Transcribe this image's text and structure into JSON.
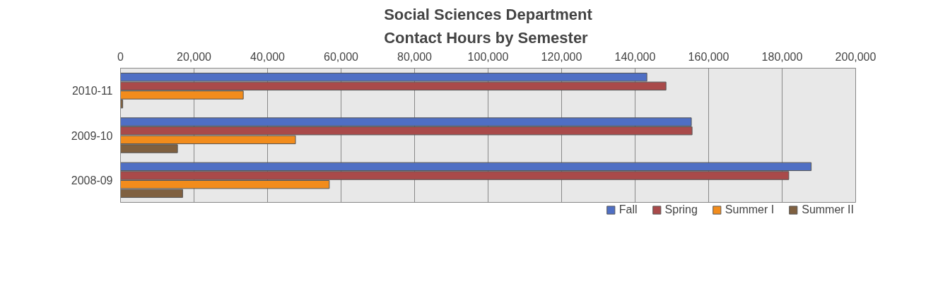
{
  "chart_data": {
    "type": "bar",
    "orientation": "horizontal",
    "title": "Social Sciences Department\nContact Hours by Semester",
    "categories": [
      "2010-11",
      "2009-10",
      "2008-09"
    ],
    "series": [
      {
        "name": "Fall",
        "color": "#4f6fc4",
        "values": [
          143200,
          155300,
          187900
        ]
      },
      {
        "name": "Spring",
        "color": "#a94a4a",
        "values": [
          148400,
          155500,
          181800
        ]
      },
      {
        "name": "Summer I",
        "color": "#f28c1c",
        "values": [
          33400,
          47600,
          56800
        ]
      },
      {
        "name": "Summer II",
        "color": "#7f6040",
        "values": [
          600,
          15500,
          16900
        ]
      }
    ],
    "xlim": [
      0,
      200000
    ],
    "xticks": [
      {
        "value": 0,
        "label": "0"
      },
      {
        "value": 20000,
        "label": "20,000"
      },
      {
        "value": 40000,
        "label": "40,000"
      },
      {
        "value": 60000,
        "label": "60,000"
      },
      {
        "value": 80000,
        "label": "80,000"
      },
      {
        "value": 100000,
        "label": "100,000"
      },
      {
        "value": 120000,
        "label": "120,000"
      },
      {
        "value": 140000,
        "label": "140,000"
      },
      {
        "value": 160000,
        "label": "160,000"
      },
      {
        "value": 180000,
        "label": "180,000"
      },
      {
        "value": 200000,
        "label": "200,000"
      }
    ],
    "grid": "x",
    "legend": "bottom"
  }
}
